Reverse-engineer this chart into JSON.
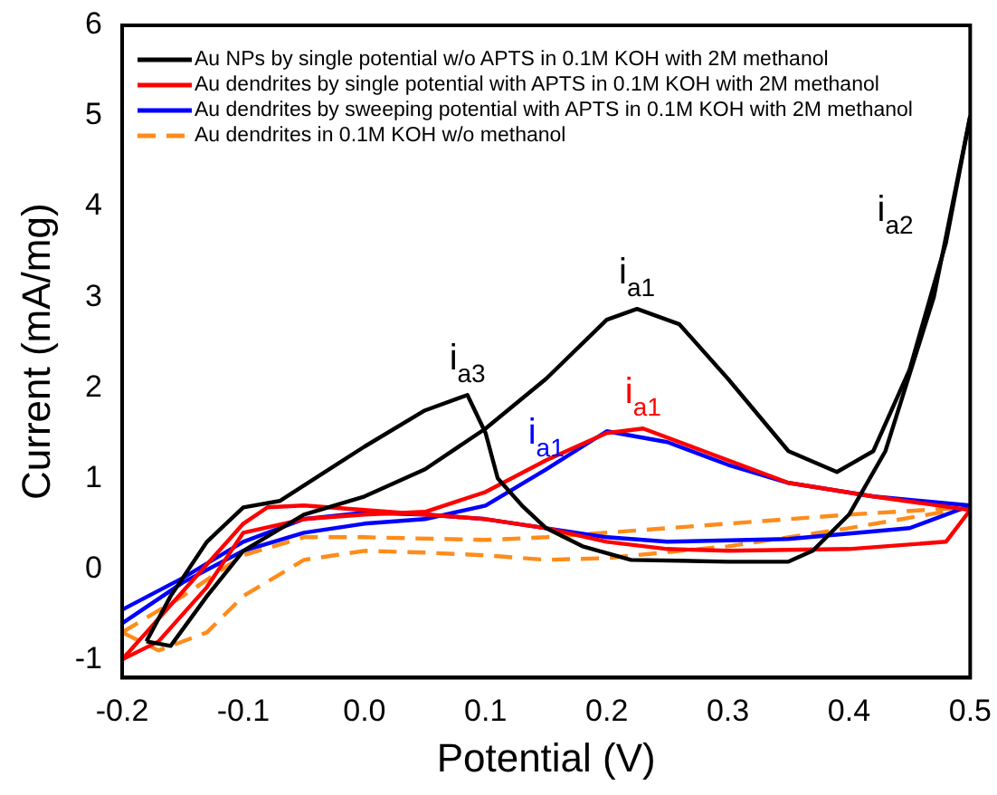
{
  "chart_data": {
    "type": "line",
    "xlabel": "Potential (V)",
    "ylabel": "Current (mA/mg)",
    "xlim": [
      -0.2,
      0.5
    ],
    "xticks": [
      -0.2,
      -0.1,
      {
        "value": 0,
        "label": "0.0"
      },
      0.1,
      0.2,
      0.3,
      0.4,
      0.5
    ],
    "ylim": [
      -1.2,
      6
    ],
    "yticks": [
      -1,
      0,
      1,
      2,
      3,
      4,
      5,
      6
    ],
    "grid": false,
    "legend": "top left",
    "marker": "none",
    "series": [
      {
        "name": "Au NPs by single potential w/o APTS in 0.1M KOH with 2M methanol",
        "color": "#000000",
        "line_style": "solid",
        "x": [
          -0.18,
          -0.16,
          -0.13,
          -0.1,
          -0.05,
          0,
          0.05,
          0.1,
          0.15,
          0.2,
          0.225,
          0.26,
          0.3,
          0.35,
          0.39,
          0.42,
          0.45,
          0.48,
          0.5
        ],
        "values": [
          -0.8,
          -0.85,
          -0.3,
          0.2,
          0.6,
          0.8,
          1.1,
          1.55,
          2.1,
          2.75,
          2.87,
          2.7,
          2.1,
          1.3,
          1.07,
          1.3,
          2.2,
          3.6,
          5.0
        ]
      },
      {
        "color": "#000000",
        "line_style": "solid",
        "x": [
          -0.18,
          -0.16,
          -0.13,
          -0.1,
          -0.07,
          0,
          0.05,
          0.085,
          0.1,
          0.11,
          0.13,
          0.15,
          0.18,
          0.22,
          0.3,
          0.35,
          0.37,
          0.4,
          0.43,
          0.47,
          0.5
        ],
        "values": [
          -0.8,
          -0.3,
          0.3,
          0.68,
          0.75,
          1.35,
          1.75,
          1.92,
          1.5,
          1.0,
          0.7,
          0.45,
          0.25,
          0.1,
          0.08,
          0.08,
          0.2,
          0.6,
          1.3,
          3.0,
          5.0
        ]
      },
      {
        "name": "Au dendrites by single potential with APTS in 0.1M KOH with 2M methanol",
        "color": "#ff0000",
        "line_style": "solid",
        "x": [
          -0.2,
          -0.17,
          -0.13,
          -0.1,
          -0.05,
          0,
          0.05,
          0.1,
          0.15,
          0.2,
          0.23,
          0.28,
          0.35,
          0.42,
          0.5
        ],
        "values": [
          -1.0,
          -0.8,
          -0.2,
          0.4,
          0.55,
          0.6,
          0.63,
          0.85,
          1.2,
          1.5,
          1.55,
          1.3,
          0.95,
          0.8,
          0.65
        ]
      },
      {
        "color": "#ff0000",
        "line_style": "solid",
        "x": [
          -0.2,
          -0.18,
          -0.14,
          -0.1,
          -0.08,
          -0.05,
          0,
          0.05,
          0.1,
          0.15,
          0.2,
          0.25,
          0.3,
          0.4,
          0.48,
          0.5
        ],
        "values": [
          -1.0,
          -0.7,
          -0.1,
          0.5,
          0.68,
          0.7,
          0.65,
          0.6,
          0.55,
          0.45,
          0.3,
          0.22,
          0.2,
          0.22,
          0.3,
          0.65
        ]
      },
      {
        "name": "Au dendrites by sweeping potential with APTS in 0.1M KOH with 2M methanol",
        "color": "#0000ff",
        "line_style": "solid",
        "x": [
          -0.2,
          -0.15,
          -0.1,
          -0.05,
          0,
          0.05,
          0.1,
          0.15,
          0.2,
          0.25,
          0.3,
          0.35,
          0.42,
          0.5
        ],
        "values": [
          -0.6,
          -0.15,
          0.2,
          0.4,
          0.5,
          0.55,
          0.7,
          1.1,
          1.52,
          1.4,
          1.15,
          0.95,
          0.8,
          0.7
        ]
      },
      {
        "color": "#0000ff",
        "line_style": "solid",
        "x": [
          -0.2,
          -0.15,
          -0.1,
          -0.05,
          0,
          0.05,
          0.1,
          0.15,
          0.2,
          0.25,
          0.35,
          0.45,
          0.5
        ],
        "values": [
          -0.45,
          -0.1,
          0.3,
          0.55,
          0.62,
          0.6,
          0.55,
          0.45,
          0.35,
          0.3,
          0.33,
          0.45,
          0.7
        ]
      },
      {
        "name": "Au dendrites in 0.1M KOH w/o methanol",
        "color": "#ff8c1a",
        "line_style": "dashed",
        "x": [
          -0.2,
          -0.17,
          -0.13,
          -0.1,
          -0.05,
          0,
          0.05,
          0.1,
          0.15,
          0.2,
          0.3,
          0.4,
          0.5
        ],
        "values": [
          -0.7,
          -0.9,
          -0.7,
          -0.3,
          0.1,
          0.2,
          0.18,
          0.15,
          0.1,
          0.12,
          0.25,
          0.45,
          0.68
        ]
      },
      {
        "color": "#ff8c1a",
        "line_style": "dashed",
        "x": [
          -0.2,
          -0.15,
          -0.1,
          -0.05,
          0,
          0.1,
          0.15,
          0.2,
          0.3,
          0.4,
          0.5
        ],
        "values": [
          -0.7,
          -0.3,
          0.15,
          0.35,
          0.35,
          0.32,
          0.35,
          0.4,
          0.5,
          0.6,
          0.68
        ]
      }
    ],
    "annotations": [
      {
        "text": "i$_{a3}$",
        "x": 0.085,
        "y": 1.92
      },
      {
        "text": "i$_{a1}$",
        "x": 0.225,
        "y": 2.87
      },
      {
        "text": "i$_{a1}$",
        "x": 0.15,
        "y": 1.1
      },
      {
        "text": "i$_{a1}$",
        "x": 0.23,
        "y": 1.55
      },
      {
        "text": "i$_{a2}$",
        "x": 0.48,
        "y": 3.6
      }
    ]
  }
}
